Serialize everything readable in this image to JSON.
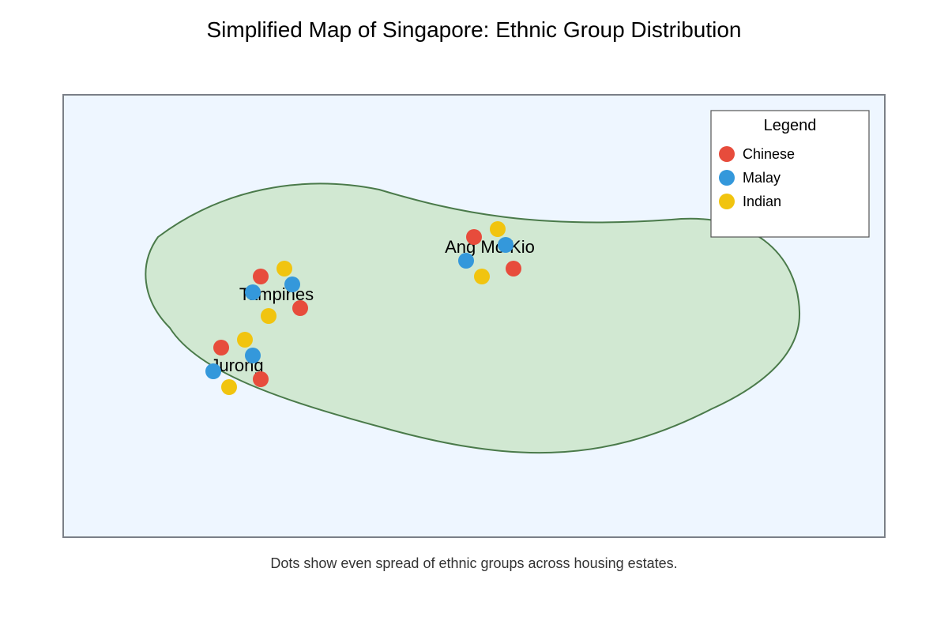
{
  "title": "Simplified Map of Singapore: Ethnic Group Distribution",
  "caption": "Dots show even spread of ethnic groups across housing estates.",
  "colors": {
    "background": "#eef6ff",
    "frame": "#7a7f87",
    "island_fill": "#d1e8d2",
    "island_stroke": "#4a7a4a",
    "chinese": "#e74c3c",
    "malay": "#3498db",
    "indian": "#f1c40f"
  },
  "legend": {
    "title": "Legend",
    "items": [
      {
        "label": "Chinese",
        "color": "#e74c3c"
      },
      {
        "label": "Malay",
        "color": "#3498db"
      },
      {
        "label": "Indian",
        "color": "#f1c40f"
      }
    ]
  },
  "estates": [
    {
      "name": "Ang Mo Kio",
      "dots": [
        "Chinese",
        "Indian",
        "Malay",
        "Malay",
        "Indian",
        "Chinese"
      ]
    },
    {
      "name": "Tampines",
      "dots": [
        "Chinese",
        "Indian",
        "Malay",
        "Malay",
        "Indian",
        "Chinese"
      ]
    },
    {
      "name": "Jurong",
      "dots": [
        "Chinese",
        "Indian",
        "Malay",
        "Malay",
        "Indian",
        "Chinese"
      ]
    }
  ]
}
